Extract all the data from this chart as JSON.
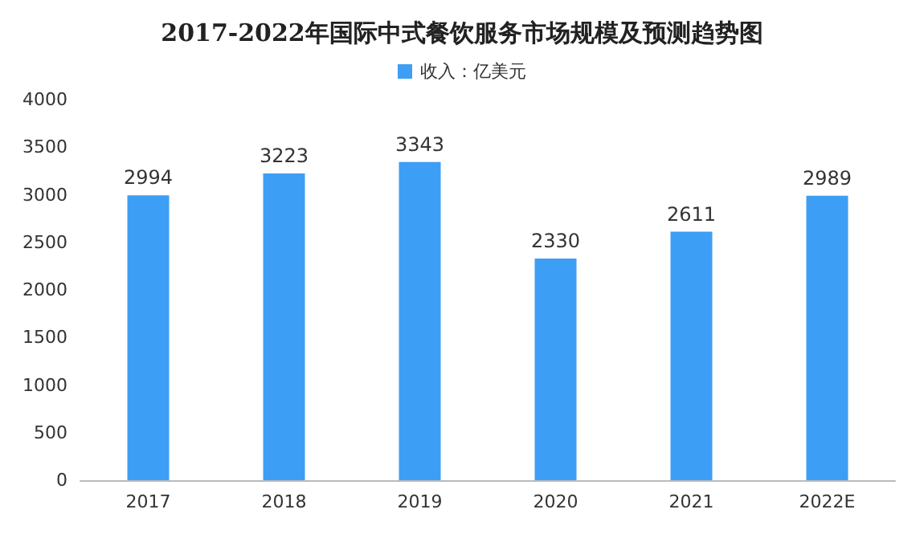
{
  "chart_data": {
    "type": "bar",
    "title": "2017-2022年国际中式餐饮服务市场规模及预测趋势图",
    "categories": [
      "2017",
      "2018",
      "2019",
      "2020",
      "2021",
      "2022E"
    ],
    "series": [
      {
        "name": "收入：亿美元",
        "color": "#3d9ef5",
        "values": [
          2994,
          3223,
          3343,
          2330,
          2611,
          2989
        ]
      }
    ],
    "ylim": [
      0,
      4000
    ],
    "yticks": [
      0,
      500,
      1000,
      1500,
      2000,
      2500,
      3000,
      3500,
      4000
    ],
    "data_labels": true,
    "legend": "top",
    "grid": false
  }
}
